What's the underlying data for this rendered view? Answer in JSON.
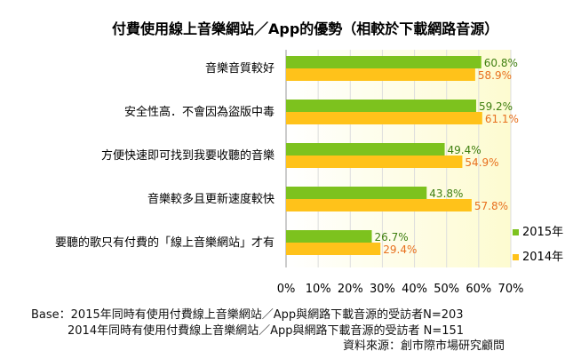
{
  "chart_data": {
    "type": "bar",
    "orientation": "horizontal",
    "title": "付費使用線上音樂網站／App的優勢（相較於下載網路音源）",
    "categories": [
      "音樂音質較好",
      "安全性高．不會因為盜版中毒",
      "方便快速即可找到我要收聽的音樂",
      "音樂較多且更新速度較快",
      "要聽的歌只有付費的「線上音樂網站」才有"
    ],
    "series": [
      {
        "name": "2015年",
        "color": "#7dc21e",
        "label_color": "#3f7f10",
        "values": [
          60.8,
          59.2,
          49.4,
          43.8,
          26.7
        ],
        "value_labels": [
          "60.8%",
          "59.2%",
          "49.4%",
          "43.8%",
          "26.7%"
        ]
      },
      {
        "name": "2014年",
        "color": "#ffc21a",
        "label_color": "#e8701e",
        "values": [
          58.9,
          61.1,
          54.9,
          57.8,
          29.4
        ],
        "value_labels": [
          "58.9%",
          "61.1%",
          "54.9%",
          "57.8%",
          "29.4%"
        ]
      }
    ],
    "xlim": [
      0,
      70
    ],
    "ticks": [
      "0%",
      "10%",
      "20%",
      "30%",
      "40%",
      "50%",
      "60%",
      "70%"
    ],
    "legend_position": "bottom-right",
    "background_gradient": [
      "#ffffff",
      "#fdfbd0"
    ]
  },
  "footnote": {
    "line1": "Base：2015年同時有使用付費線上音樂網站／App與網路下載音源的受訪者N=203",
    "line2": "2014年同時有使用付費線上音樂網站／App與網路下載音源的受訪者 N=151",
    "source": "資料來源：創市際市場研究顧問"
  }
}
